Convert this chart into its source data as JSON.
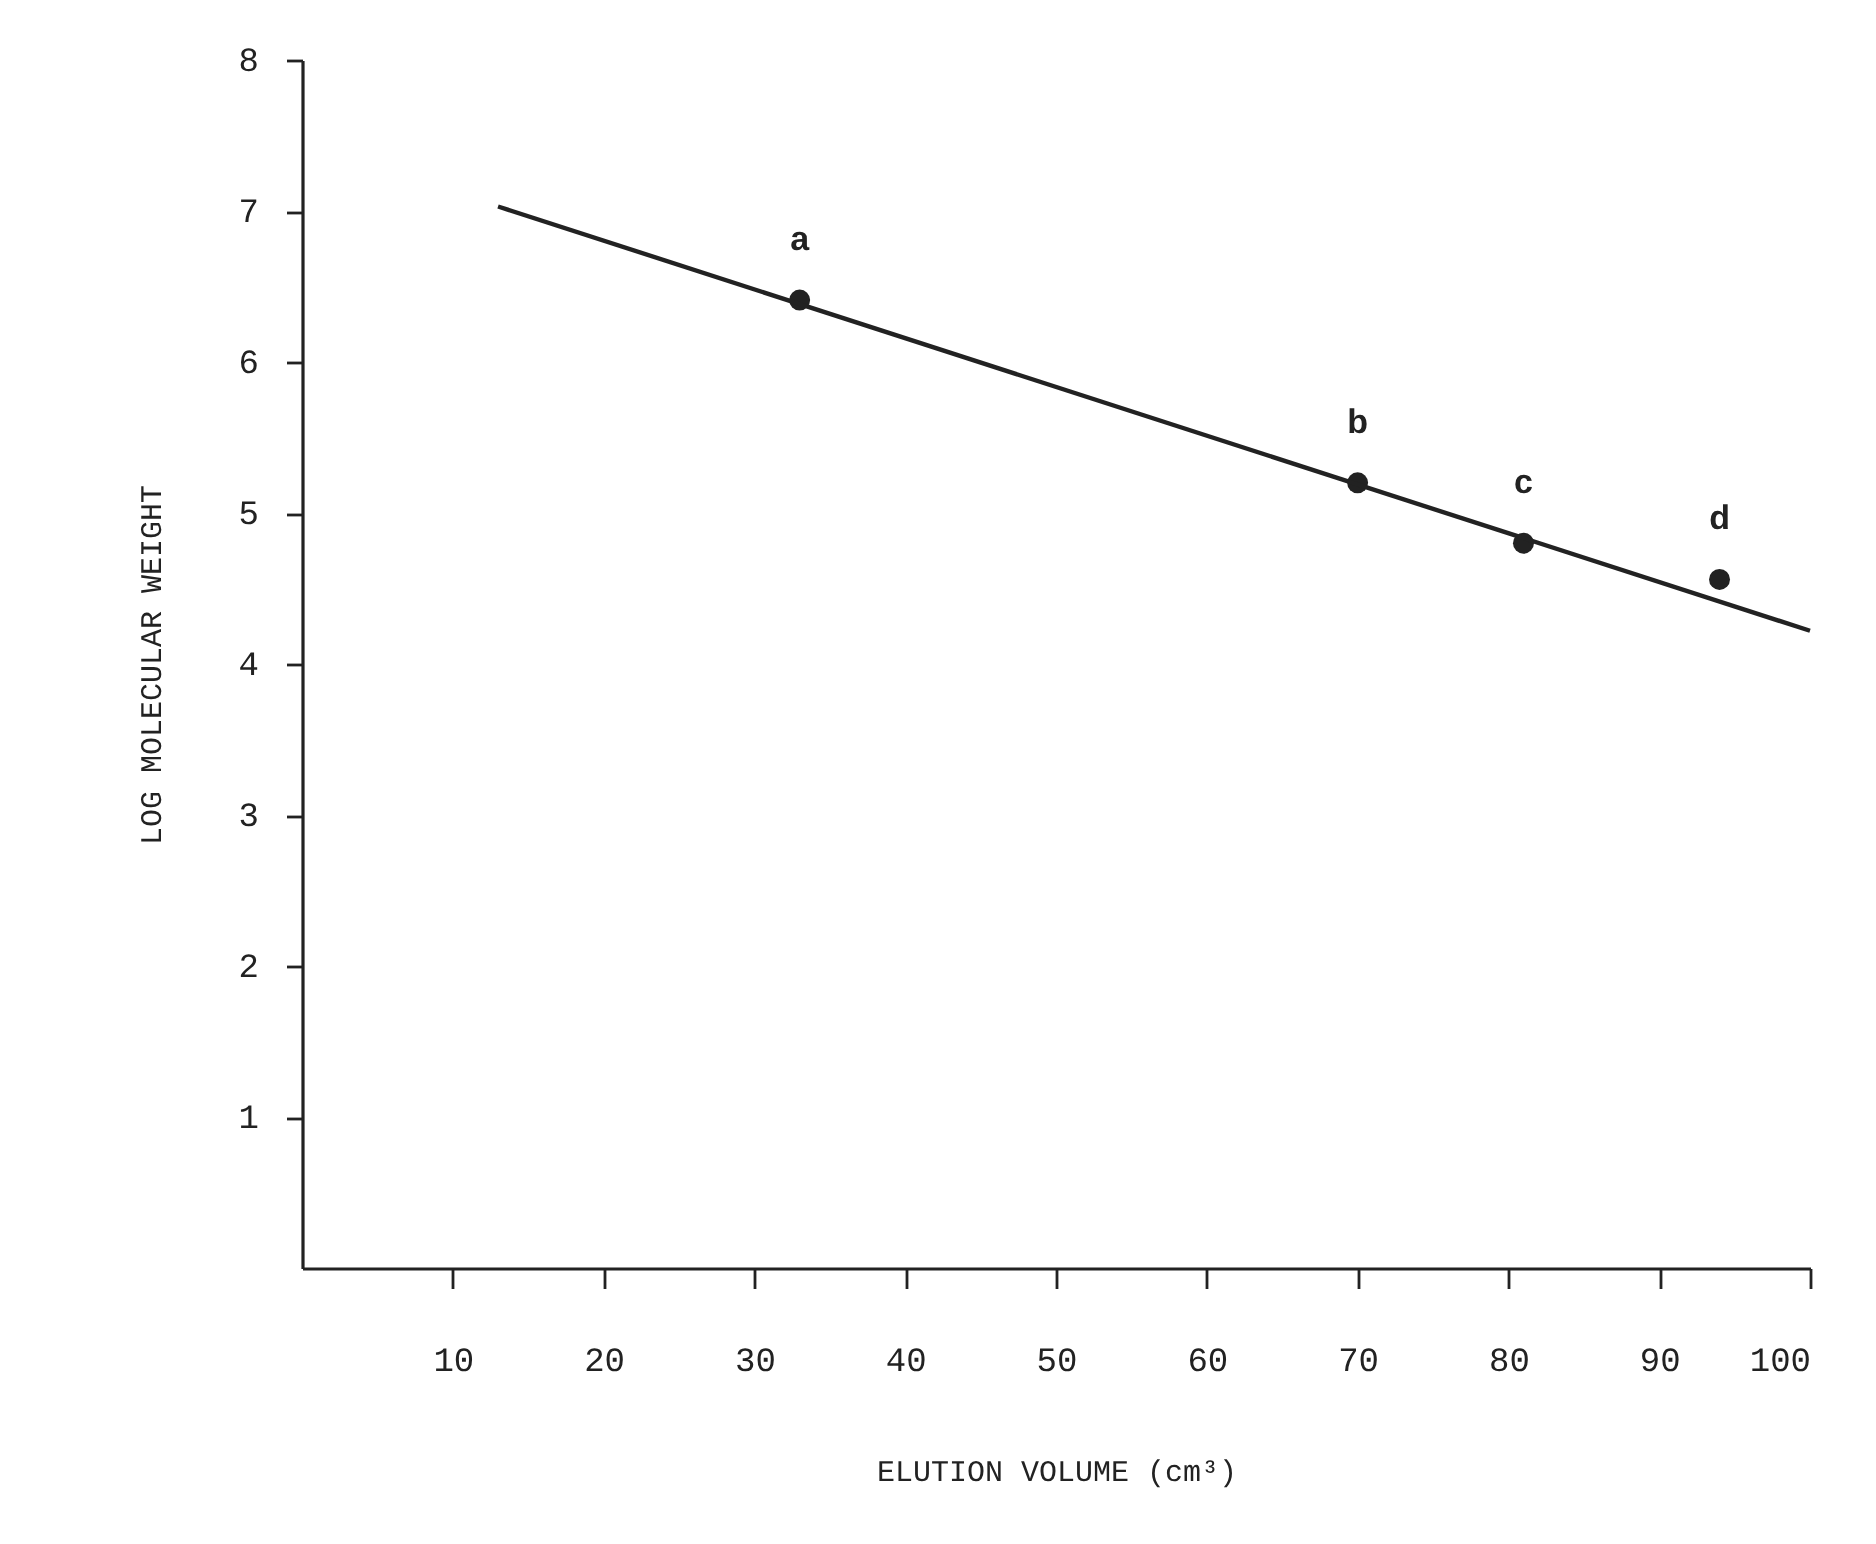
{
  "chart_data": {
    "type": "scatter",
    "xlabel": "ELUTION VOLUME (cm³)",
    "ylabel": "LOG MOLECULAR WEIGHT",
    "xlim": [
      0,
      100
    ],
    "ylim": [
      0,
      8
    ],
    "xticks": [
      10,
      20,
      30,
      40,
      50,
      60,
      70,
      80,
      90,
      100
    ],
    "yticks": [
      1,
      2,
      3,
      4,
      5,
      6,
      7,
      8
    ],
    "grid": false,
    "marker": "circle",
    "series": [
      {
        "color": "#222222",
        "x": [
          33,
          70,
          81,
          94
        ],
        "values": [
          6.41,
          5.2,
          4.8,
          4.56
        ]
      },
      {
        "type": "line",
        "color": "#222222",
        "line_style": "solid",
        "marker": "none",
        "x": [
          13,
          100
        ],
        "values": [
          7.03,
          4.22
        ]
      }
    ],
    "annotations": [
      {
        "text": "a",
        "x": 33,
        "y": 6.41
      },
      {
        "text": "b",
        "x": 70,
        "y": 5.2
      },
      {
        "text": "c",
        "x": 81,
        "y": 4.8
      },
      {
        "text": "d",
        "x": 94,
        "y": 4.56
      }
    ]
  }
}
